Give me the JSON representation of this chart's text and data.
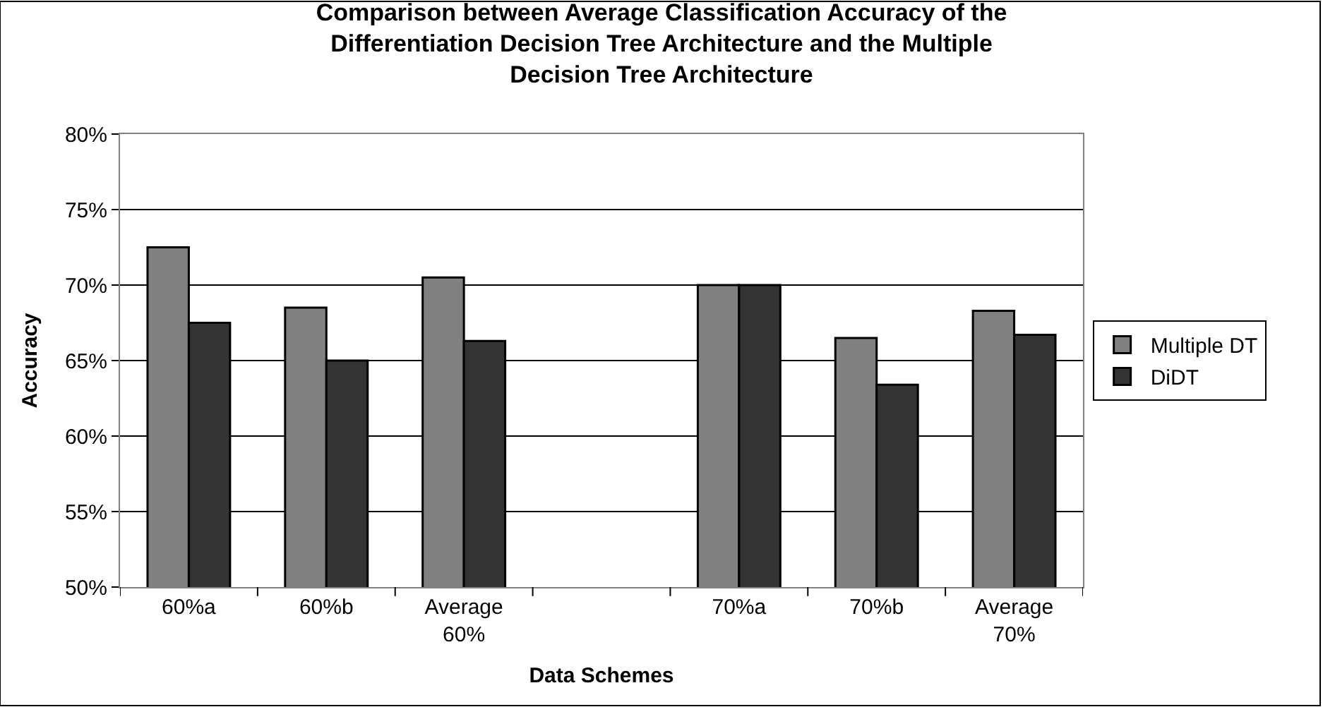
{
  "chart_data": {
    "type": "bar",
    "title": "Comparison between Average Classification Accuracy of the\nDifferentiation Decision Tree Architecture and the Multiple\nDecision Tree Architecture",
    "xlabel": "Data Schemes",
    "ylabel": "Accuracy",
    "categories": [
      "60%a",
      "60%b",
      "Average\n60%",
      null,
      "70%a",
      "70%b",
      "Average\n70%"
    ],
    "series": [
      {
        "name": "Multiple DT",
        "color": "#808080",
        "values": [
          72.5,
          68.5,
          70.5,
          null,
          70,
          66.5,
          68.3
        ]
      },
      {
        "name": "DiDT",
        "color": "#333333",
        "values": [
          67.5,
          65,
          66.3,
          null,
          70,
          63.4,
          66.7
        ]
      }
    ],
    "ylim": [
      50,
      80
    ],
    "yticks": [
      {
        "value": 50,
        "label": "50%"
      },
      {
        "value": 55,
        "label": "55%"
      },
      {
        "value": 60,
        "label": "60%"
      },
      {
        "value": 65,
        "label": "65%"
      },
      {
        "value": 70,
        "label": "70%"
      },
      {
        "value": 75,
        "label": "75%"
      },
      {
        "value": 80,
        "label": "80%"
      }
    ],
    "grid": "y",
    "legend": "right"
  }
}
